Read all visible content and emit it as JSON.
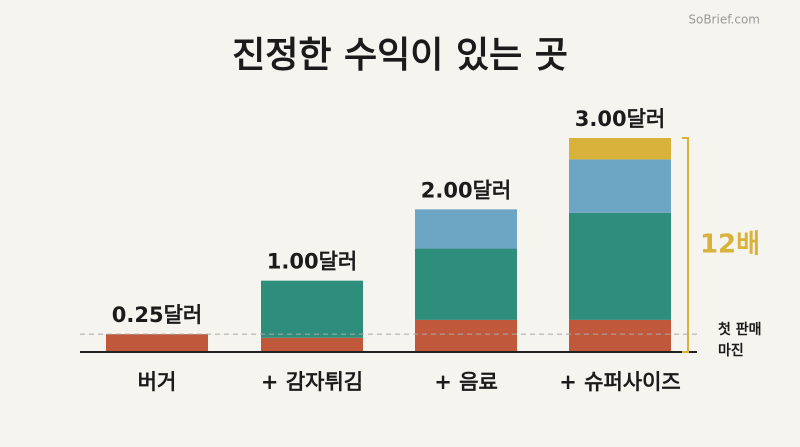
{
  "watermark": "SoBrief.com",
  "chart_data": {
    "type": "stacked-bar",
    "title": "진정한 수익이 있는 곳",
    "categories": [
      "버거",
      "+ 감자튀김",
      "+ 음료",
      "+ 슈퍼사이즈"
    ],
    "total_labels": [
      "0.25달러",
      "1.00달러",
      "2.00달러",
      "3.00달러"
    ],
    "series": [
      {
        "color": "#c0593b",
        "values": [
          0.25,
          0.2,
          0.45,
          0.45
        ]
      },
      {
        "color": "#2f8d7b",
        "values": [
          null,
          0.8,
          1.0,
          1.5
        ]
      },
      {
        "color": "#6da5c5",
        "values": [
          null,
          null,
          0.55,
          0.75
        ]
      },
      {
        "color": "#d8b23b",
        "values": [
          null,
          null,
          null,
          0.3
        ]
      }
    ],
    "ylim": [
      0,
      3
    ],
    "annotations": {
      "multiplier": "12배",
      "margin_note": [
        "첫 판매",
        "마진"
      ]
    }
  }
}
